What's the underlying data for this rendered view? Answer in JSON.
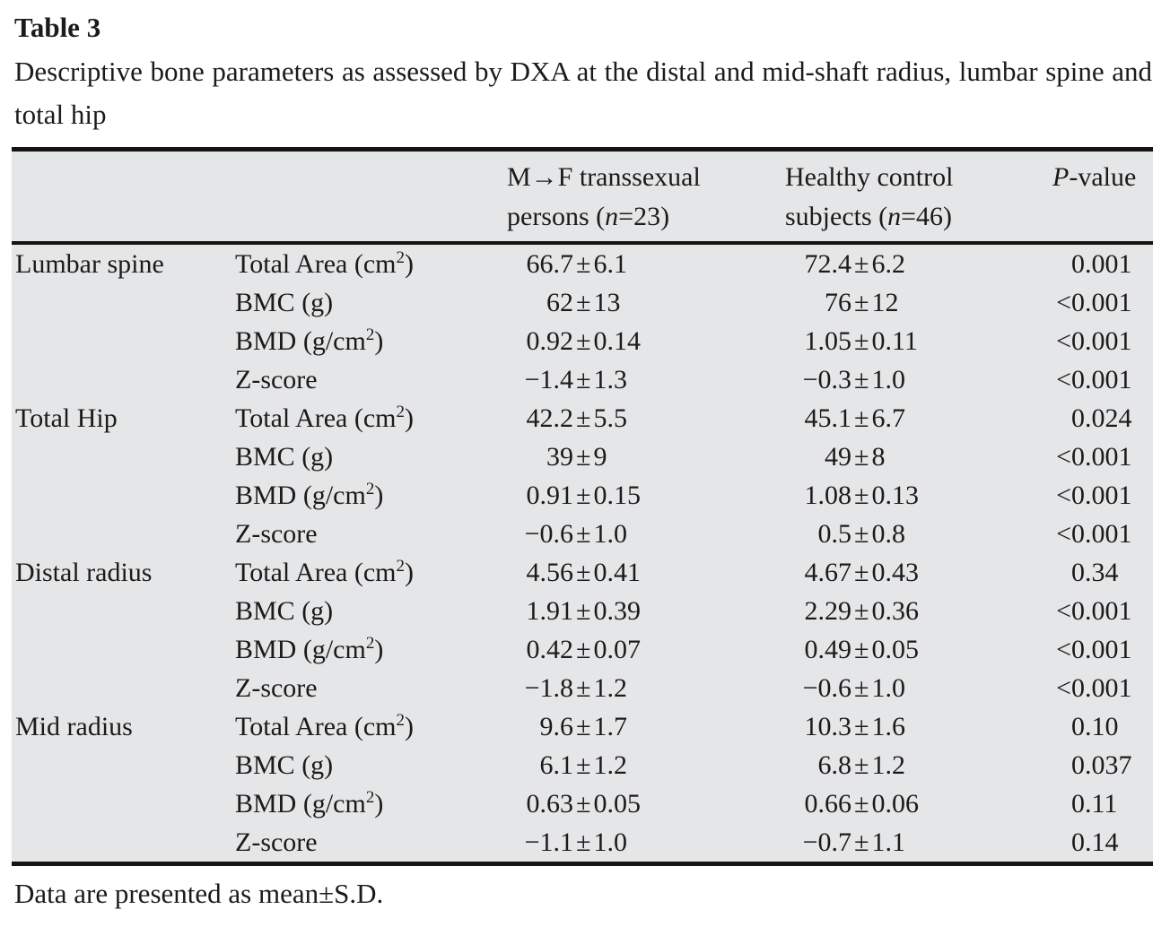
{
  "title": "Table 3",
  "description": "Descriptive bone parameters as assessed by DXA at the distal and mid-shaft radius, lumbar spine and total hip",
  "footnote": "Data are presented as mean±S.D.",
  "colors": {
    "table_bg": "#e5e6e7",
    "rule": "#161312",
    "text": "#1d1a19"
  },
  "table": {
    "header": {
      "col3_line1": "M→F transsexual",
      "col3_line2_pre": "persons (",
      "col3_n": "n",
      "col3_line2_post": "=23)",
      "col4_line1": "Healthy control",
      "col4_line2_pre": "subjects (",
      "col4_n": "n",
      "col4_line2_post": "=46)",
      "col5_p": "P",
      "col5_post": "-value"
    },
    "rows": [
      {
        "group": "Lumbar spine",
        "param": "Total Area (cm²)",
        "mf": "66.7±6.1",
        "hc": "72.4±6.2",
        "p": "0.001"
      },
      {
        "group": "",
        "param": "BMC (g)",
        "mf": "62±13",
        "hc": "76±12",
        "p": "<0.001"
      },
      {
        "group": "",
        "param": "BMD (g/cm²)",
        "mf": "0.92±0.14",
        "hc": "1.05±0.11",
        "p": "<0.001"
      },
      {
        "group": "",
        "param": "Z-score",
        "mf": "−1.4±1.3",
        "hc": "−0.3±1.0",
        "p": "<0.001"
      },
      {
        "group": "Total Hip",
        "param": "Total Area (cm²)",
        "mf": "42.2±5.5",
        "hc": "45.1±6.7",
        "p": "0.024"
      },
      {
        "group": "",
        "param": "BMC (g)",
        "mf": "39±9",
        "hc": "49±8",
        "p": "<0.001"
      },
      {
        "group": "",
        "param": "BMD (g/cm²)",
        "mf": "0.91±0.15",
        "hc": "1.08±0.13",
        "p": "<0.001"
      },
      {
        "group": "",
        "param": "Z-score",
        "mf": "−0.6±1.0",
        "hc": "0.5±0.8",
        "p": "<0.001"
      },
      {
        "group": "Distal radius",
        "param": "Total Area (cm²)",
        "mf": "4.56±0.41",
        "hc": "4.67±0.43",
        "p": "0.34"
      },
      {
        "group": "",
        "param": "BMC (g)",
        "mf": "1.91±0.39",
        "hc": "2.29±0.36",
        "p": "<0.001"
      },
      {
        "group": "",
        "param": "BMD (g/cm²)",
        "mf": "0.42±0.07",
        "hc": "0.49±0.05",
        "p": "<0.001"
      },
      {
        "group": "",
        "param": "Z-score",
        "mf": "−1.8±1.2",
        "hc": "−0.6±1.0",
        "p": "<0.001"
      },
      {
        "group": "Mid radius",
        "param": "Total Area (cm²)",
        "mf": "9.6±1.7",
        "hc": "10.3±1.6",
        "p": "0.10"
      },
      {
        "group": "",
        "param": "BMC (g)",
        "mf": "6.1±1.2",
        "hc": "6.8±1.2",
        "p": "0.037"
      },
      {
        "group": "",
        "param": "BMD (g/cm²)",
        "mf": "0.63±0.05",
        "hc": "0.66±0.06",
        "p": "0.11"
      },
      {
        "group": "",
        "param": "Z-score",
        "mf": "−1.1±1.0",
        "hc": "−0.7±1.1",
        "p": "0.14"
      }
    ]
  }
}
